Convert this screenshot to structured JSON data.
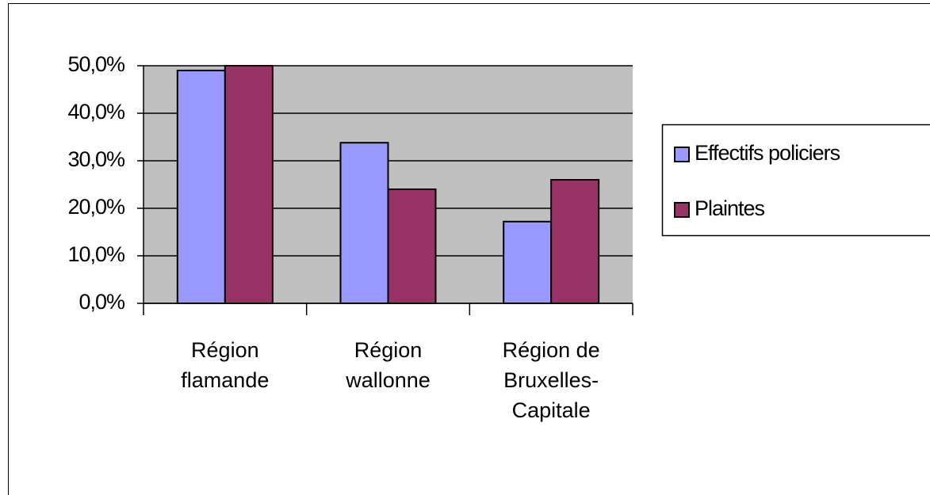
{
  "chart_data": {
    "type": "bar",
    "categories": [
      "Région flamande",
      "Région wallonne",
      "Région de Bruxelles-Capitale"
    ],
    "series": [
      {
        "name": "Effectifs policiers",
        "color": "#9999ff",
        "values": [
          49.0,
          33.8,
          17.2
        ]
      },
      {
        "name": "Plaintes",
        "color": "#993366",
        "values": [
          50.0,
          24.0,
          26.0
        ]
      }
    ],
    "ylim": [
      0,
      50
    ],
    "yticks": [
      {
        "value": 0,
        "label": "0,0%"
      },
      {
        "value": 10,
        "label": "10,0%"
      },
      {
        "value": 20,
        "label": "20,0%"
      },
      {
        "value": 30,
        "label": "30,0%"
      },
      {
        "value": 40,
        "label": "40,0%"
      },
      {
        "value": 50,
        "label": "50,0%"
      }
    ],
    "grid": true,
    "legend": "right"
  }
}
